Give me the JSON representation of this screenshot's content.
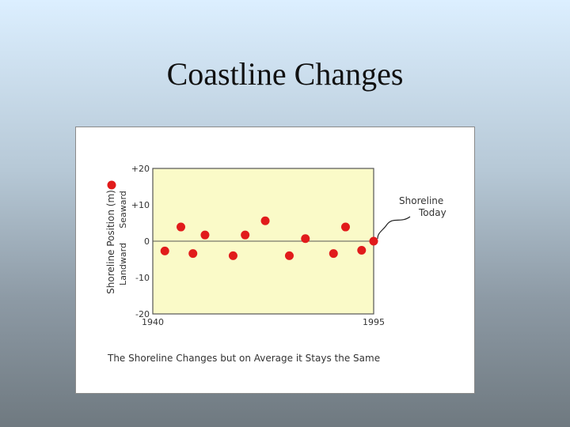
{
  "slide": {
    "title": "Coastline Changes"
  },
  "colors": {
    "plot_bg": "#fafac8",
    "point": "#e11b1b",
    "grid": "#555555"
  },
  "chart_data": {
    "type": "scatter",
    "title": "",
    "caption": "The Shoreline Changes but on Average it Stays the Same",
    "ylabel": "Shoreline Position (m)",
    "ylabel_upper": "Seaward",
    "ylabel_lower": "Landward",
    "xlim": [
      1940,
      1995
    ],
    "ylim": [
      -20,
      20
    ],
    "x_ticks": [
      "1940",
      "1995"
    ],
    "y_ticks": [
      "+20",
      "+10",
      "0",
      "-10",
      "-20"
    ],
    "zero_line": true,
    "annotation": {
      "line1": "Shoreline",
      "line2": "Today",
      "x": 1995,
      "y": 0
    },
    "points": [
      {
        "x": 1943,
        "y": -2.7
      },
      {
        "x": 1947,
        "y": 3.9
      },
      {
        "x": 1950,
        "y": -3.4
      },
      {
        "x": 1953,
        "y": 1.7
      },
      {
        "x": 1960,
        "y": -4.0
      },
      {
        "x": 1963,
        "y": 1.7
      },
      {
        "x": 1968,
        "y": 5.6
      },
      {
        "x": 1974,
        "y": -4.0
      },
      {
        "x": 1978,
        "y": 0.7
      },
      {
        "x": 1985,
        "y": -3.4
      },
      {
        "x": 1988,
        "y": 3.9
      },
      {
        "x": 1992,
        "y": -2.5
      },
      {
        "x": 1995,
        "y": 0
      }
    ]
  }
}
